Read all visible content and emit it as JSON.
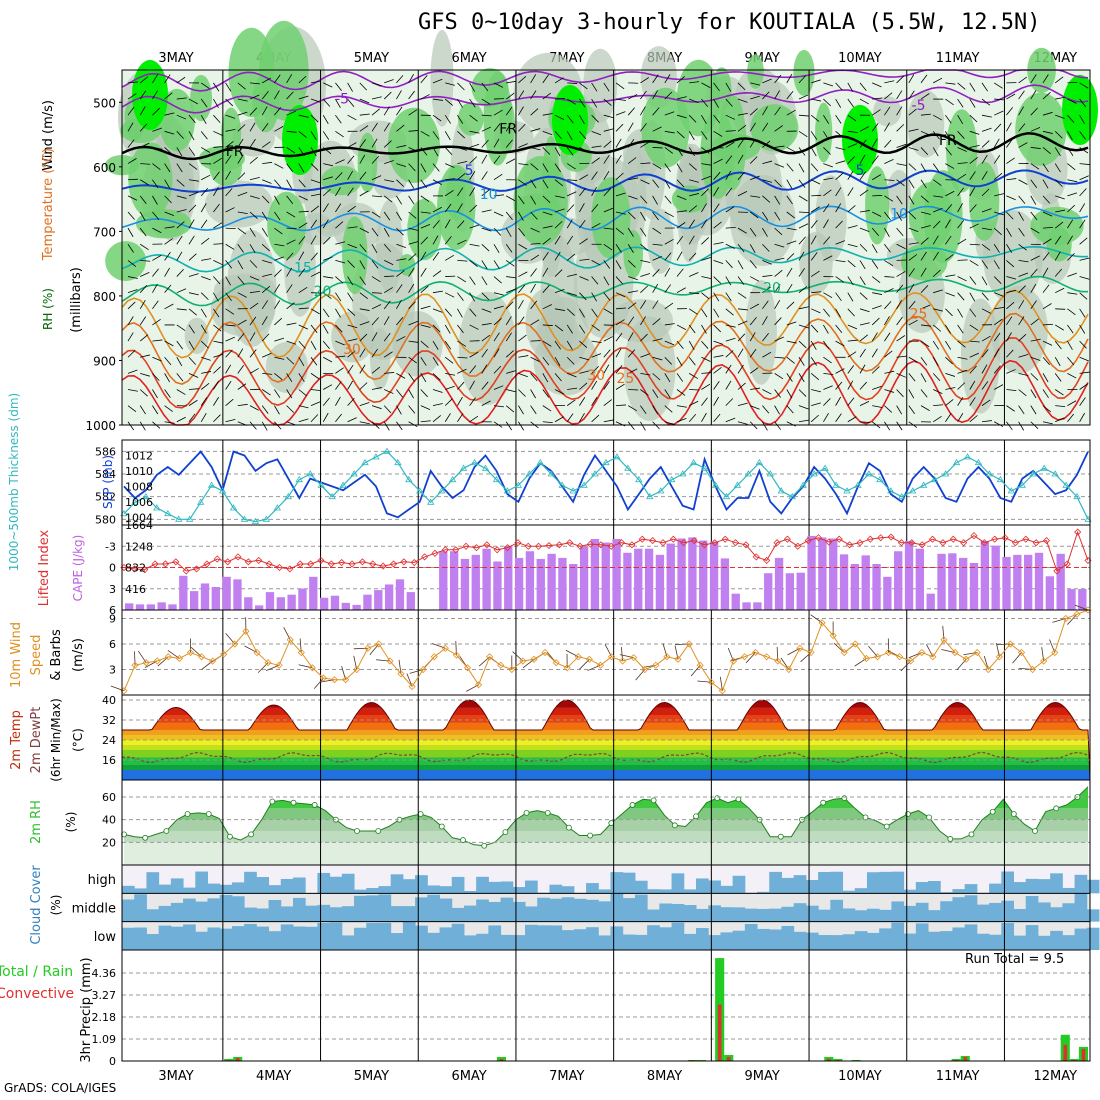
{
  "title": "GFS 0~10day 3-hourly for KOUTIALA (5.5W, 12.5N)",
  "footer": "GrADS: COLA/IGES",
  "run_total": "Run Total = 9.5",
  "date_labels": [
    "3MAY",
    "4MAY",
    "5MAY",
    "6MAY",
    "7MAY",
    "8MAY",
    "9MAY",
    "10MAY",
    "11MAY",
    "12MAY"
  ],
  "colors": {
    "rh_green": "#00ee00",
    "wind_temp": "#000000",
    "cape": "#c080f0",
    "li": "#e03030",
    "slp": "#1040d0",
    "thick": "#30b8c0",
    "wind10": "#e09020",
    "rh2m": "#30c030",
    "cloud": "#70b0d8",
    "precip_total": "#22cc22",
    "precip_conv": "#e03030"
  },
  "chart_data": [
    {
      "type": "heatmap",
      "panel": "upper_air",
      "ylabel": "(millibars)",
      "side_labels": [
        "Wind (m/s)",
        "Temperature (°C)",
        "RH (%)"
      ],
      "yticks": [
        500,
        600,
        700,
        800,
        900,
        1000
      ],
      "ylim": [
        1000,
        450
      ],
      "isotherm_labels": [
        {
          "label": "-5",
          "day": 1.7,
          "p": 502
        },
        {
          "label": "-5",
          "day": 7.6,
          "p": 512
        },
        {
          "label": "FR",
          "day": 0.6,
          "p": 583
        },
        {
          "label": "FR",
          "day": 3.4,
          "p": 548
        },
        {
          "label": "FR",
          "day": 7.9,
          "p": 566
        },
        {
          "label": "5",
          "day": 3.0,
          "p": 613
        },
        {
          "label": "5",
          "day": 7.0,
          "p": 613
        },
        {
          "label": "10",
          "day": 3.2,
          "p": 650
        },
        {
          "label": "10",
          "day": 7.4,
          "p": 680
        },
        {
          "label": "15",
          "day": 1.3,
          "p": 764
        },
        {
          "label": "20",
          "day": 1.5,
          "p": 800
        },
        {
          "label": "20",
          "day": 6.1,
          "p": 795
        },
        {
          "label": "25",
          "day": 7.6,
          "p": 835
        },
        {
          "label": "25",
          "day": 4.6,
          "p": 935
        },
        {
          "label": "30",
          "day": 1.8,
          "p": 890
        },
        {
          "label": "30",
          "day": 4.3,
          "p": 930
        }
      ]
    },
    {
      "type": "line",
      "panel": "thickness_slp",
      "left_label": "1000~500mb Thickness (dm)",
      "right_label": "SLP (mb)",
      "left_ticks": [
        580,
        582,
        584,
        586
      ],
      "right_ticks": [
        1004,
        1006,
        1008,
        1010,
        1012
      ],
      "ylim_left": [
        579.5,
        587
      ],
      "ylim_right": [
        1003,
        1014
      ],
      "series": [
        {
          "name": "SLP (mb)",
          "axis": "right",
          "values": [
            1008,
            1006.5,
            1007.5,
            1009.5,
            1010.5,
            1009.5,
            1011,
            1012.5,
            1010.5,
            1007.5,
            1012.5,
            1012,
            1010,
            1011,
            1011.5,
            1009,
            1006.5,
            1009,
            1008.5,
            1008,
            1007.5,
            1008.5,
            1009.5,
            1008,
            1004.5,
            1004,
            1005,
            1006,
            1010,
            1008,
            1006.5,
            1007.5,
            1010.5,
            1012,
            1010,
            1007,
            1006,
            1009,
            1011,
            1010,
            1008,
            1006,
            1009.5,
            1012,
            1010,
            1008,
            1005,
            1007,
            1009,
            1010.5,
            1008,
            1005.5,
            1005,
            1011.5,
            1008,
            1005,
            1006.5,
            1006.5,
            1010,
            1006,
            1004.5,
            1006.5,
            1008,
            1010.5,
            1009,
            1007,
            1004.5,
            1008,
            1011,
            1010,
            1007,
            1006,
            1009,
            1010.5,
            1009,
            1006.5,
            1006,
            1009,
            1010.5,
            1009,
            1006.5,
            1006,
            1009,
            1010,
            1008.5,
            1007,
            1007.5,
            1009.5,
            1012.5
          ]
        },
        {
          "name": "1000~500mb Thickness (dm)",
          "axis": "left",
          "values": [
            580.5,
            581.5,
            582,
            581,
            580.5,
            580,
            580,
            581.5,
            583,
            582.5,
            581,
            580,
            579.8,
            580,
            581,
            582,
            583.5,
            584,
            583,
            582,
            583,
            584,
            585,
            585.5,
            586,
            585,
            583.5,
            582.5,
            581.5,
            582.5,
            583.5,
            584.5,
            585,
            584.5,
            583.5,
            582.5,
            583,
            584,
            585,
            584,
            583,
            582.5,
            583,
            584,
            585,
            585.5,
            584.5,
            583.5,
            582,
            582.5,
            583.5,
            584,
            585,
            584.5,
            583,
            582,
            583,
            584,
            585,
            584,
            582.5,
            582,
            583,
            584,
            584.5,
            583,
            582.5,
            583,
            584,
            583.5,
            582.5,
            582,
            582.5,
            583,
            583.5,
            584,
            585,
            585.5,
            585,
            584,
            583.5,
            582.5,
            583,
            584,
            584.5,
            584,
            583,
            582,
            580
          ]
        }
      ]
    },
    {
      "type": "bar",
      "panel": "li_cape",
      "left_label": "Lifted Index",
      "right_label": "CAPE (J/kg)",
      "left_ticks": [
        -3,
        0,
        3,
        6
      ],
      "right_ticks": [
        416,
        832,
        1248,
        1664
      ],
      "ylim_left": [
        6,
        -6
      ],
      "ylim_right": [
        0,
        1664
      ],
      "cape_values": [
        130,
        110,
        110,
        150,
        110,
        670,
        370,
        520,
        450,
        650,
        600,
        250,
        90,
        350,
        250,
        300,
        420,
        650,
        240,
        280,
        140,
        100,
        300,
        390,
        500,
        600,
        350,
        0,
        0,
        1150,
        1150,
        1000,
        1080,
        1200,
        950,
        1250,
        1020,
        1150,
        1000,
        1100,
        1020,
        900,
        1240,
        1390,
        1320,
        1390,
        1120,
        1200,
        1200,
        1080,
        1300,
        1400,
        1420,
        1360,
        1340,
        1010,
        320,
        150,
        150,
        720,
        1020,
        720,
        730,
        1450,
        1420,
        1400,
        1090,
        900,
        1070,
        900,
        650,
        1150,
        1350,
        1200,
        320,
        1100,
        1110,
        1020,
        920,
        1350,
        1260,
        1040,
        1080,
        1080,
        1120,
        660,
        1100,
        410,
        410
      ],
      "li_values": [
        0,
        0.2,
        0.3,
        -0.5,
        -0.5,
        -0.8,
        0.5,
        0.2,
        -0.5,
        -1.2,
        -0.8,
        -1.5,
        -0.8,
        -1,
        -0.5,
        0,
        0.2,
        -0.5,
        -0.5,
        -1,
        -0.5,
        -0.7,
        -0.5,
        -0.8,
        -0.5,
        -0.2,
        -0.5,
        -0.8,
        -0.7,
        -1.5,
        -2,
        -2.5,
        -2.5,
        -3,
        -2.8,
        -3.2,
        -2.5,
        -2.8,
        -3.5,
        -3,
        -3,
        -3.1,
        -3.2,
        -3.5,
        -3,
        -3.3,
        -3.2,
        -3,
        -3.5,
        -3.2,
        -4,
        -3.8,
        -3.5,
        -4,
        -3.5,
        -3.8,
        -3.2,
        -3.5,
        -4,
        -3.5,
        -3.2,
        -1.5,
        -1,
        -3.5,
        -4,
        -3,
        -3.8,
        -4.2,
        -3.6,
        -4,
        -3.2,
        -3.5,
        -4,
        -4.2,
        -4.3,
        -3.5,
        -3.5,
        -3.2,
        -4,
        -3.5,
        -4,
        -3.5,
        -4.5,
        -3.5,
        -4,
        -4.2,
        -3.5,
        -4,
        -3.5,
        -3.8,
        0.5,
        -0.5,
        -5,
        -1
      ]
    },
    {
      "type": "line",
      "panel": "wind10m",
      "ylabel": "10m Wind Speed & Barbs (m/s)",
      "yticks": [
        3,
        6,
        9
      ],
      "ylim": [
        0,
        10
      ],
      "values": [
        0.5,
        3.5,
        3.8,
        4,
        4.5,
        4.3,
        5,
        4.5,
        4,
        4.8,
        6,
        7.5,
        5,
        3.8,
        3.5,
        6.5,
        5,
        3.2,
        2,
        1.8,
        1.8,
        3,
        5.5,
        6,
        4,
        2.5,
        1,
        3,
        4.5,
        5.5,
        4.7,
        3.2,
        1.2,
        4.5,
        3.5,
        3,
        4,
        4.2,
        5,
        3.8,
        3.2,
        4.5,
        4.2,
        3.5,
        4.5,
        4,
        4.4,
        3,
        3.5,
        4.5,
        4.2,
        6,
        3.5,
        1.5,
        0.5,
        4,
        4.5,
        5,
        4.5,
        4,
        3,
        5.5,
        5,
        8.5,
        7,
        5,
        6,
        4.3,
        4.5,
        5,
        4.5,
        4,
        5,
        4.5,
        6.5,
        5,
        4.2,
        5,
        3,
        4.5,
        6,
        5,
        3,
        4,
        5,
        9,
        9.5,
        10
      ]
    },
    {
      "type": "area",
      "panel": "temp2m",
      "ylabel": "2m Temp, 2m DewPt (6hr Min/Max) (°C)",
      "yticks": [
        16,
        24,
        32,
        40
      ],
      "ylim": [
        8,
        42
      ],
      "temp_max_by_day": [
        37,
        38,
        39,
        40,
        40,
        39,
        40,
        39,
        39,
        39
      ],
      "temp_min": 28,
      "dewpoint_mean": 17
    },
    {
      "type": "area",
      "panel": "rh2m",
      "ylabel": "2m RH (%)",
      "yticks": [
        20,
        40,
        60
      ],
      "ylim": [
        0,
        75
      ],
      "values": [
        27,
        25,
        24,
        27,
        30,
        40,
        45,
        46,
        45,
        41,
        25,
        22,
        27,
        40,
        56,
        57,
        55,
        54,
        53,
        48,
        40,
        33,
        30,
        30,
        30,
        34,
        40,
        43,
        45,
        42,
        34,
        24,
        22,
        18,
        17,
        20,
        29,
        40,
        46,
        48,
        46,
        43,
        33,
        26,
        26,
        27,
        37,
        45,
        53,
        58,
        57,
        44,
        35,
        34,
        43,
        55,
        59,
        55,
        58,
        50,
        40,
        25,
        25,
        25,
        40,
        47,
        55,
        58,
        59,
        50,
        42,
        39,
        34,
        40,
        45,
        48,
        42,
        30,
        23,
        23,
        27,
        40,
        47,
        58,
        45,
        36,
        30,
        47,
        50,
        53,
        60,
        69
      ]
    },
    {
      "type": "heatmap",
      "panel": "cloud",
      "ylabel": "Cloud Cover (%)",
      "layers": [
        "high",
        "middle",
        "low"
      ]
    },
    {
      "type": "bar",
      "panel": "precip",
      "ylabel": "3hr Precip (mm)",
      "left_labels": [
        "Total / Rain",
        "Convective"
      ],
      "yticks": [
        0,
        1.09,
        2.18,
        3.27,
        4.36
      ],
      "ylim": [
        0,
        5.5
      ],
      "total": [
        0,
        0,
        0,
        0,
        0,
        0,
        0,
        0,
        0,
        0,
        0,
        0.1,
        0.2,
        0,
        0,
        0,
        0,
        0,
        0,
        0,
        0,
        0,
        0,
        0,
        0,
        0,
        0,
        0,
        0,
        0,
        0,
        0,
        0,
        0,
        0,
        0,
        0,
        0,
        0,
        0,
        0,
        0.2,
        0,
        0,
        0,
        0,
        0,
        0,
        0,
        0,
        0,
        0,
        0,
        0,
        0,
        0,
        0,
        0,
        0,
        0,
        0,
        0,
        0.05,
        0.05,
        0,
        5.1,
        0.3,
        0,
        0,
        0,
        0,
        0,
        0,
        0,
        0,
        0,
        0,
        0.2,
        0.1,
        0,
        0.05,
        0,
        0,
        0,
        0,
        0,
        0,
        0,
        0,
        0,
        0,
        0.1,
        0.25,
        0,
        0,
        0,
        0,
        0,
        0,
        0,
        0,
        0,
        0,
        1.3,
        0.1,
        0.7
      ],
      "convective": [
        0,
        0,
        0,
        0,
        0,
        0,
        0,
        0,
        0,
        0,
        0,
        0.05,
        0.15,
        0,
        0,
        0,
        0,
        0,
        0,
        0,
        0,
        0,
        0,
        0,
        0,
        0,
        0,
        0,
        0,
        0,
        0,
        0,
        0,
        0,
        0,
        0,
        0,
        0,
        0,
        0,
        0,
        0.1,
        0,
        0,
        0,
        0,
        0,
        0,
        0,
        0,
        0,
        0,
        0,
        0,
        0,
        0,
        0,
        0,
        0,
        0,
        0,
        0,
        0.05,
        0.03,
        0,
        2.8,
        0.2,
        0,
        0,
        0,
        0,
        0,
        0,
        0,
        0,
        0,
        0,
        0.1,
        0.05,
        0,
        0.03,
        0,
        0,
        0,
        0,
        0,
        0,
        0,
        0,
        0,
        0,
        0.05,
        0.2,
        0,
        0,
        0,
        0,
        0,
        0,
        0,
        0,
        0,
        0,
        0.8,
        0.05,
        0.6
      ]
    }
  ]
}
